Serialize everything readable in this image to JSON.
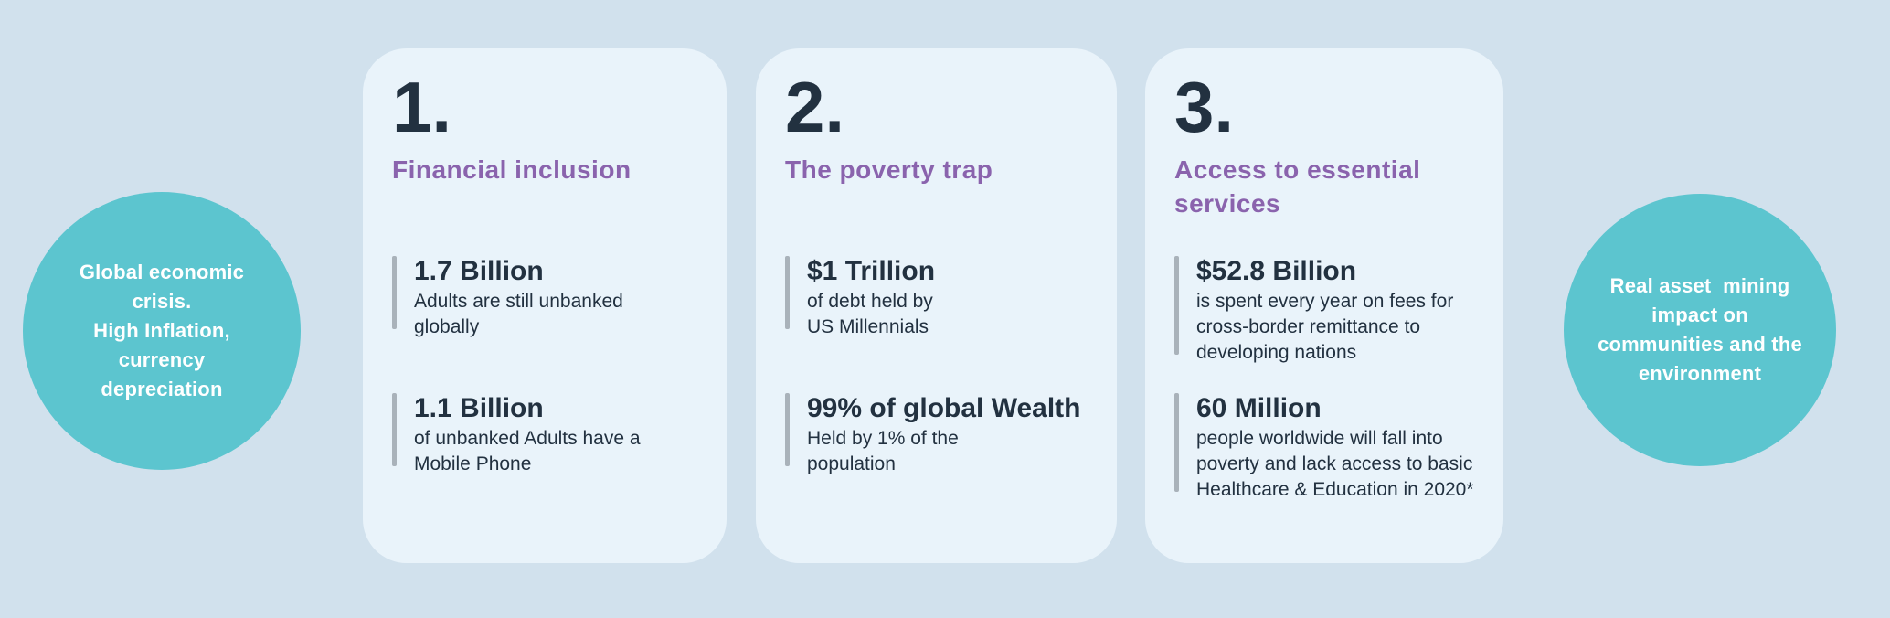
{
  "colors": {
    "page_background": "#D1E1ED",
    "card_background": "#E9F3FA",
    "circle_teal": "#5CC5CF",
    "heading_purple": "#8A63AD",
    "text_dark": "#223140",
    "accent_bar_gray": "#A9B2BA",
    "circle_text_white": "#FFFFFF"
  },
  "left_circle": {
    "text": "Global economic\ncrisis.\nHigh Inflation,\ncurrency\ndepreciation"
  },
  "right_circle": {
    "text": "Real asset  mining\nimpact on\ncommunities and the\nenvironment"
  },
  "cards": [
    {
      "number": "1.",
      "title": "Financial inclusion",
      "stats": [
        {
          "value": "1.7 Billion",
          "description": "Adults are still unbanked\nglobally"
        },
        {
          "value": "1.1 Billion",
          "description": "of unbanked Adults have a\nMobile Phone"
        }
      ]
    },
    {
      "number": "2.",
      "title": "The poverty trap",
      "stats": [
        {
          "value": "$1 Trillion",
          "description": "of debt held by\nUS Millennials"
        },
        {
          "value": "99% of global Wealth",
          "description": "Held by 1% of the\npopulation"
        }
      ]
    },
    {
      "number": "3.",
      "title": "Access to essential\nservices",
      "stats": [
        {
          "value": "$52.8 Billion",
          "description": "is spent every year on fees for\ncross-border remittance to\ndeveloping nations"
        },
        {
          "value": "60 Million",
          "description": "people worldwide will fall into\npoverty and lack access to basic\nHealthcare & Education in 2020*"
        }
      ]
    }
  ]
}
